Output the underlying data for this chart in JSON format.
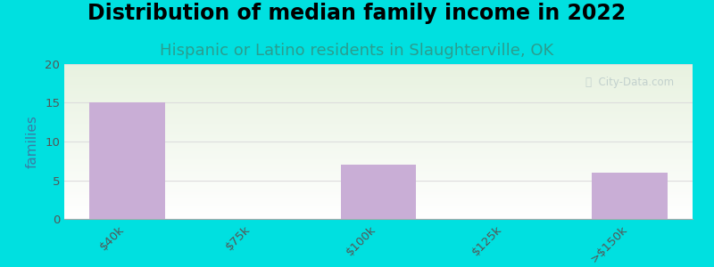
{
  "title": "Distribution of median family income in 2022",
  "subtitle": "Hispanic or Latino residents in Slaughterville, OK",
  "categories": [
    "$40k",
    "$75k",
    "$100k",
    "$125k",
    ">$150k"
  ],
  "values": [
    15,
    0,
    7,
    0,
    6
  ],
  "bar_color": "#c9aed6",
  "background_outer": "#00e0e0",
  "background_inner_top": "#e8f2e0",
  "background_inner_bottom": "#ffffff",
  "ylabel": "families",
  "ylim": [
    0,
    20
  ],
  "yticks": [
    0,
    5,
    10,
    15,
    20
  ],
  "title_fontsize": 17,
  "subtitle_fontsize": 13,
  "subtitle_color": "#2a9d8f",
  "ylabel_color": "#3a7ca5",
  "tick_label_color": "#555555",
  "watermark_text": "ⓘ  City-Data.com",
  "watermark_color": "#b8c8c8",
  "grid_color": "#dddddd"
}
